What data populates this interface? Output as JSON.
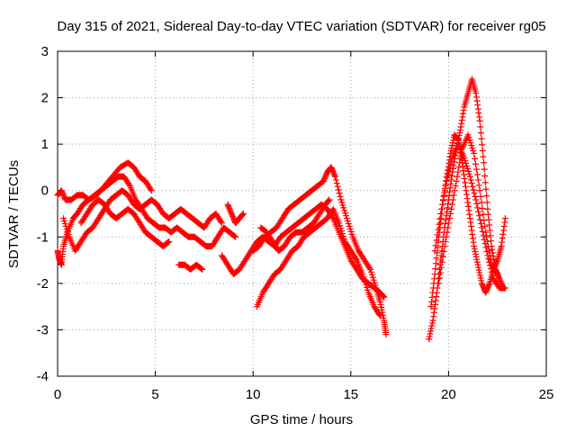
{
  "chart_data": {
    "type": "scatter",
    "title": "Day 315 of 2021, Sidereal Day-to-day VTEC variation (SDTVAR) for receiver rg05",
    "xlabel": "GPS time / hours",
    "ylabel": "SDTVAR / TECUs",
    "xlim": [
      0,
      25
    ],
    "ylim": [
      -4,
      3
    ],
    "xticks": [
      0,
      5,
      10,
      15,
      20,
      25
    ],
    "yticks": [
      -4,
      -3,
      -2,
      -1,
      0,
      1,
      2,
      3
    ],
    "grid": true,
    "marker": "+",
    "series_color": "#ff0000",
    "tracks": [
      {
        "name": "track-1",
        "points": [
          [
            0.0,
            -1.3
          ],
          [
            0.1,
            -1.5
          ],
          [
            0.2,
            -1.6
          ],
          [
            0.3,
            -1.2
          ],
          [
            0.5,
            -0.9
          ],
          [
            0.8,
            -0.6
          ],
          [
            1.0,
            -0.5
          ],
          [
            1.3,
            -0.3
          ],
          [
            1.6,
            -0.2
          ],
          [
            2.0,
            -0.1
          ],
          [
            2.4,
            0.1
          ],
          [
            2.8,
            0.3
          ],
          [
            3.2,
            0.5
          ],
          [
            3.6,
            0.6
          ],
          [
            3.9,
            0.5
          ],
          [
            4.2,
            0.3
          ],
          [
            4.5,
            0.2
          ],
          [
            4.8,
            0.0
          ]
        ]
      },
      {
        "name": "track-2",
        "points": [
          [
            0.0,
            -0.1
          ],
          [
            0.2,
            0.0
          ],
          [
            0.4,
            -0.2
          ],
          [
            0.7,
            -0.2
          ],
          [
            1.0,
            -0.1
          ],
          [
            1.3,
            -0.1
          ],
          [
            1.6,
            -0.2
          ],
          [
            1.9,
            -0.1
          ],
          [
            2.2,
            0.0
          ],
          [
            2.5,
            0.1
          ],
          [
            2.8,
            0.2
          ],
          [
            3.1,
            0.3
          ],
          [
            3.4,
            0.3
          ],
          [
            3.7,
            0.1
          ],
          [
            4.0,
            -0.2
          ],
          [
            4.3,
            -0.4
          ],
          [
            4.6,
            -0.6
          ],
          [
            4.9,
            -0.7
          ],
          [
            5.2,
            -0.8
          ],
          [
            5.5,
            -0.8
          ],
          [
            5.8,
            -0.9
          ],
          [
            6.1,
            -0.8
          ],
          [
            6.4,
            -0.9
          ],
          [
            6.7,
            -1.0
          ],
          [
            7.0,
            -1.0
          ],
          [
            7.3,
            -1.1
          ],
          [
            7.6,
            -1.2
          ],
          [
            7.9,
            -1.2
          ],
          [
            8.2,
            -1.0
          ],
          [
            8.5,
            -0.8
          ],
          [
            8.8,
            -0.9
          ],
          [
            9.1,
            -1.0
          ]
        ]
      },
      {
        "name": "track-3",
        "points": [
          [
            0.3,
            -0.6
          ],
          [
            0.6,
            -1.0
          ],
          [
            0.9,
            -1.3
          ],
          [
            1.2,
            -1.1
          ],
          [
            1.5,
            -0.9
          ],
          [
            1.8,
            -0.8
          ],
          [
            2.1,
            -0.6
          ],
          [
            2.4,
            -0.4
          ],
          [
            2.7,
            -0.2
          ],
          [
            3.0,
            -0.1
          ],
          [
            3.3,
            0.0
          ],
          [
            3.6,
            -0.1
          ],
          [
            3.9,
            -0.3
          ],
          [
            4.2,
            -0.4
          ],
          [
            4.5,
            -0.3
          ],
          [
            4.8,
            -0.2
          ],
          [
            5.1,
            -0.3
          ],
          [
            5.4,
            -0.5
          ],
          [
            5.7,
            -0.6
          ],
          [
            6.0,
            -0.5
          ],
          [
            6.3,
            -0.4
          ],
          [
            6.6,
            -0.5
          ],
          [
            6.9,
            -0.6
          ],
          [
            7.2,
            -0.7
          ],
          [
            7.5,
            -0.8
          ],
          [
            7.8,
            -0.6
          ],
          [
            8.1,
            -0.5
          ],
          [
            8.4,
            -0.7
          ]
        ]
      },
      {
        "name": "track-4",
        "points": [
          [
            1.2,
            -0.7
          ],
          [
            1.5,
            -0.5
          ],
          [
            1.8,
            -0.3
          ],
          [
            2.1,
            -0.2
          ],
          [
            2.4,
            -0.3
          ],
          [
            2.7,
            -0.5
          ],
          [
            3.0,
            -0.6
          ],
          [
            3.3,
            -0.5
          ],
          [
            3.6,
            -0.4
          ],
          [
            3.9,
            -0.5
          ],
          [
            4.2,
            -0.7
          ],
          [
            4.5,
            -0.9
          ],
          [
            4.8,
            -1.0
          ],
          [
            5.1,
            -1.1
          ],
          [
            5.4,
            -1.2
          ],
          [
            5.7,
            -1.1
          ]
        ]
      },
      {
        "name": "track-5",
        "points": [
          [
            6.2,
            -1.6
          ],
          [
            6.5,
            -1.6
          ],
          [
            6.8,
            -1.7
          ],
          [
            7.1,
            -1.6
          ],
          [
            7.4,
            -1.7
          ]
        ]
      },
      {
        "name": "track-6",
        "points": [
          [
            8.4,
            -1.4
          ],
          [
            8.7,
            -1.6
          ],
          [
            9.0,
            -1.8
          ],
          [
            9.3,
            -1.7
          ],
          [
            9.6,
            -1.5
          ],
          [
            9.9,
            -1.3
          ],
          [
            10.2,
            -1.1
          ],
          [
            10.5,
            -1.0
          ],
          [
            10.8,
            -1.1
          ],
          [
            11.1,
            -1.2
          ],
          [
            11.4,
            -1.0
          ],
          [
            11.7,
            -0.9
          ],
          [
            12.0,
            -0.8
          ],
          [
            12.3,
            -0.7
          ],
          [
            12.6,
            -0.6
          ],
          [
            12.9,
            -0.5
          ],
          [
            13.2,
            -0.4
          ],
          [
            13.5,
            -0.3
          ],
          [
            13.8,
            -0.4
          ],
          [
            14.1,
            -0.6
          ],
          [
            14.4,
            -0.9
          ],
          [
            14.7,
            -1.2
          ],
          [
            15.0,
            -1.5
          ],
          [
            15.3,
            -1.7
          ],
          [
            15.6,
            -1.9
          ],
          [
            15.9,
            -2.0
          ],
          [
            16.2,
            -2.1
          ],
          [
            16.5,
            -2.2
          ],
          [
            16.7,
            -2.3
          ]
        ]
      },
      {
        "name": "track-7",
        "points": [
          [
            8.7,
            -0.3
          ],
          [
            8.9,
            -0.5
          ],
          [
            9.1,
            -0.7
          ],
          [
            9.3,
            -0.6
          ],
          [
            9.5,
            -0.5
          ]
        ]
      },
      {
        "name": "track-8",
        "points": [
          [
            10.0,
            -1.3
          ],
          [
            10.3,
            -1.2
          ],
          [
            10.6,
            -1.0
          ],
          [
            10.9,
            -0.9
          ],
          [
            11.2,
            -0.8
          ],
          [
            11.5,
            -0.6
          ],
          [
            11.8,
            -0.4
          ],
          [
            12.1,
            -0.3
          ],
          [
            12.4,
            -0.2
          ],
          [
            12.7,
            -0.1
          ],
          [
            13.0,
            0.0
          ],
          [
            13.3,
            0.1
          ],
          [
            13.6,
            0.2
          ],
          [
            13.8,
            0.4
          ],
          [
            14.0,
            0.5
          ],
          [
            14.2,
            0.3
          ],
          [
            14.5,
            -0.2
          ],
          [
            14.8,
            -0.6
          ],
          [
            15.1,
            -1.0
          ],
          [
            15.4,
            -1.3
          ],
          [
            15.7,
            -1.5
          ],
          [
            16.0,
            -1.7
          ],
          [
            16.3,
            -2.1
          ],
          [
            16.5,
            -2.4
          ],
          [
            16.7,
            -2.8
          ],
          [
            16.8,
            -3.1
          ]
        ]
      },
      {
        "name": "track-9",
        "points": [
          [
            10.2,
            -2.5
          ],
          [
            10.5,
            -2.2
          ],
          [
            10.8,
            -2.0
          ],
          [
            11.1,
            -1.8
          ],
          [
            11.4,
            -1.7
          ],
          [
            11.7,
            -1.5
          ],
          [
            12.0,
            -1.3
          ],
          [
            12.3,
            -1.2
          ],
          [
            12.6,
            -1.0
          ],
          [
            12.9,
            -0.9
          ],
          [
            13.2,
            -0.8
          ],
          [
            13.5,
            -0.7
          ],
          [
            13.8,
            -0.6
          ],
          [
            14.1,
            -0.4
          ],
          [
            14.4,
            -0.7
          ],
          [
            14.7,
            -1.1
          ],
          [
            15.0,
            -1.3
          ],
          [
            15.3,
            -1.5
          ],
          [
            15.6,
            -1.8
          ],
          [
            15.9,
            -2.2
          ],
          [
            16.2,
            -2.5
          ],
          [
            16.5,
            -2.7
          ]
        ]
      },
      {
        "name": "track-10",
        "points": [
          [
            10.4,
            -0.8
          ],
          [
            10.7,
            -0.9
          ],
          [
            11.0,
            -1.1
          ],
          [
            11.3,
            -1.3
          ],
          [
            11.6,
            -1.2
          ],
          [
            11.9,
            -1.0
          ],
          [
            12.2,
            -0.9
          ],
          [
            12.5,
            -0.9
          ],
          [
            12.8,
            -0.8
          ],
          [
            13.1,
            -0.7
          ],
          [
            13.4,
            -0.5
          ],
          [
            13.7,
            -0.3
          ],
          [
            13.9,
            -0.2
          ]
        ]
      },
      {
        "name": "track-11",
        "points": [
          [
            19.0,
            -3.2
          ],
          [
            19.2,
            -2.8
          ],
          [
            19.4,
            -2.2
          ],
          [
            19.6,
            -1.5
          ],
          [
            19.8,
            -0.8
          ],
          [
            20.0,
            -0.2
          ],
          [
            20.2,
            0.4
          ],
          [
            20.4,
            0.9
          ],
          [
            20.6,
            1.3
          ],
          [
            20.8,
            1.8
          ],
          [
            21.0,
            2.1
          ],
          [
            21.2,
            2.4
          ],
          [
            21.4,
            2.1
          ],
          [
            21.6,
            1.5
          ],
          [
            21.8,
            0.6
          ],
          [
            22.0,
            -0.4
          ],
          [
            22.2,
            -1.2
          ],
          [
            22.4,
            -1.7
          ],
          [
            22.6,
            -1.9
          ],
          [
            22.8,
            -2.1
          ]
        ]
      },
      {
        "name": "track-12",
        "points": [
          [
            19.1,
            -2.5
          ],
          [
            19.3,
            -1.8
          ],
          [
            19.5,
            -1.0
          ],
          [
            19.7,
            -0.3
          ],
          [
            19.9,
            0.3
          ],
          [
            20.1,
            0.8
          ],
          [
            20.3,
            1.2
          ],
          [
            20.5,
            1.1
          ],
          [
            20.7,
            0.6
          ],
          [
            20.9,
            0.0
          ],
          [
            21.1,
            -0.6
          ],
          [
            21.3,
            -1.2
          ],
          [
            21.5,
            -1.6
          ],
          [
            21.7,
            -2.0
          ],
          [
            21.9,
            -2.2
          ],
          [
            22.1,
            -2.0
          ],
          [
            22.3,
            -1.7
          ],
          [
            22.5,
            -1.5
          ],
          [
            22.7,
            -1.2
          ],
          [
            22.9,
            -0.6
          ]
        ]
      },
      {
        "name": "track-13",
        "points": [
          [
            19.3,
            -1.3
          ],
          [
            19.6,
            -0.5
          ],
          [
            19.9,
            0.2
          ],
          [
            20.2,
            0.7
          ],
          [
            20.5,
            1.0
          ],
          [
            20.8,
            0.7
          ],
          [
            21.1,
            0.3
          ],
          [
            21.4,
            -0.2
          ],
          [
            21.7,
            -0.8
          ],
          [
            22.0,
            -1.4
          ],
          [
            22.3,
            -1.9
          ],
          [
            22.6,
            -2.1
          ],
          [
            22.9,
            -2.1
          ]
        ]
      },
      {
        "name": "track-14",
        "points": [
          [
            19.5,
            -2.0
          ],
          [
            19.8,
            -1.2
          ],
          [
            20.1,
            -0.5
          ],
          [
            20.4,
            0.2
          ],
          [
            20.7,
            0.9
          ],
          [
            21.0,
            1.2
          ],
          [
            21.3,
            0.8
          ],
          [
            21.6,
            0.0
          ],
          [
            21.9,
            -0.9
          ],
          [
            22.2,
            -1.6
          ],
          [
            22.5,
            -1.8
          ]
        ]
      }
    ]
  }
}
